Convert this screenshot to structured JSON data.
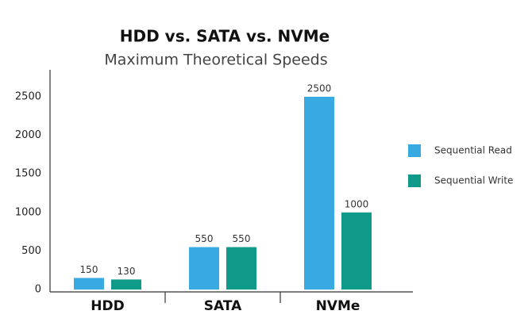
{
  "chart_data": {
    "type": "bar",
    "title": "HDD vs. SATA vs. NVMe",
    "subtitle": "Maximum Theoretical Speeds",
    "categories": [
      "HDD",
      "SATA",
      "NVMe"
    ],
    "series": [
      {
        "name": "Sequential Read",
        "color": "#39a9e1",
        "values": [
          150,
          550,
          2500
        ]
      },
      {
        "name": "Sequential Write",
        "color": "#0f9a8a",
        "values": [
          130,
          550,
          1000
        ]
      }
    ],
    "ylim": [
      0,
      2850
    ],
    "yticks": [
      0,
      500,
      1000,
      1500,
      2000,
      2500
    ],
    "grid": false,
    "legend": "right"
  }
}
